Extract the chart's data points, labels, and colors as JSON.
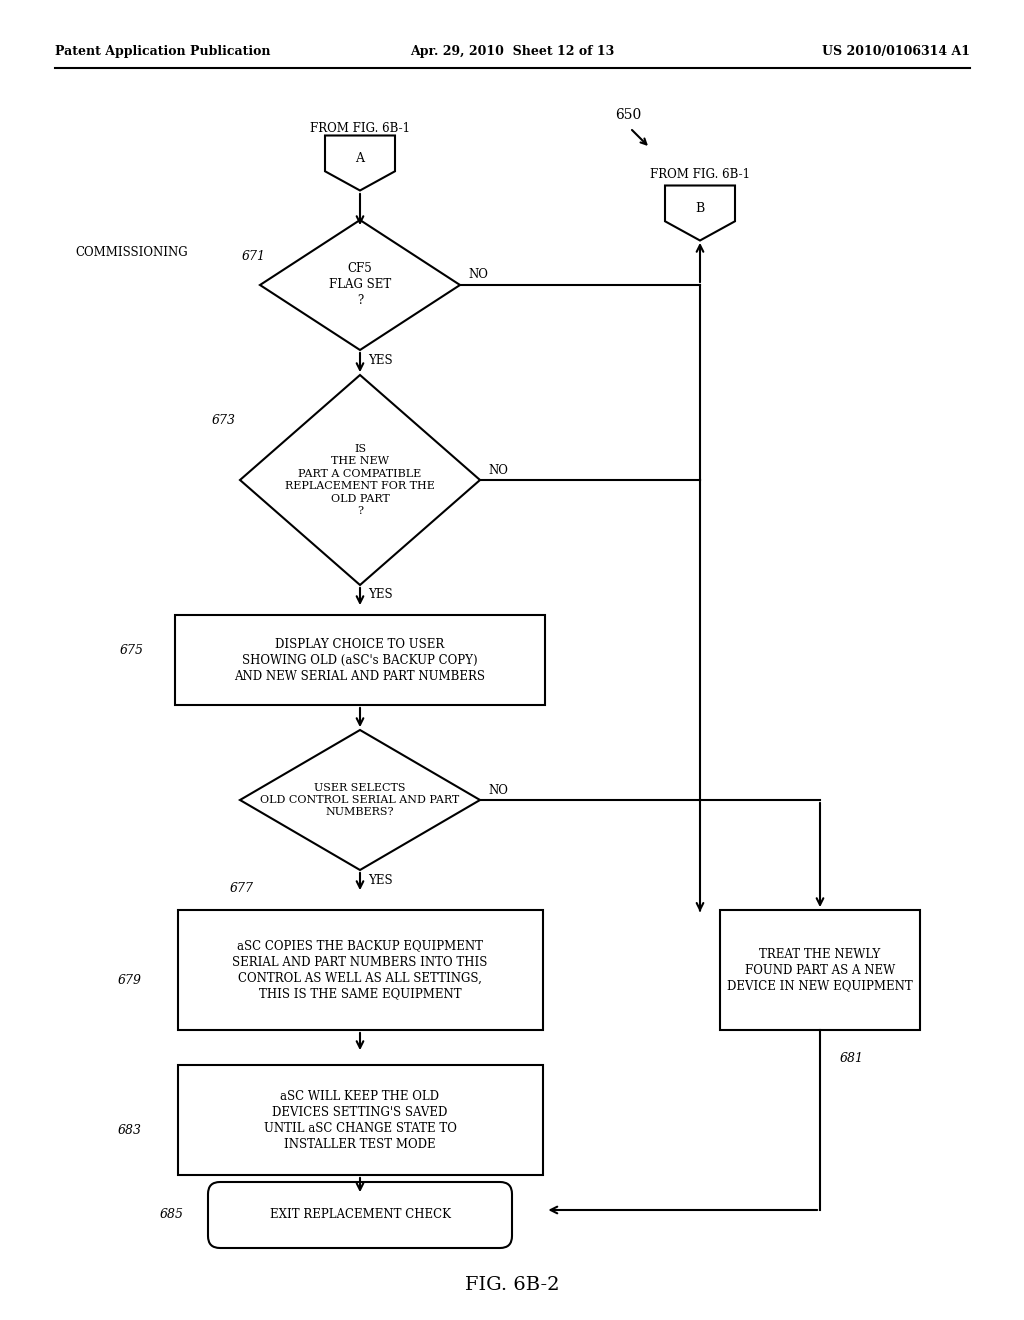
{
  "bg_color": "#ffffff",
  "header_left": "Patent Application Publication",
  "header_center": "Apr. 29, 2010  Sheet 12 of 13",
  "header_right": "US 2010/0106314 A1",
  "fig_label": "FIG. 6B-2",
  "num_650": "650",
  "commissioning_label": "COMMISSIONING",
  "node_A_label": "A",
  "node_A_from": "FROM FIG. 6B-1",
  "node_B_label": "B",
  "node_B_from": "FROM FIG. 6B-1",
  "diamond1_text": "CF5\nFLAG SET\n?",
  "diamond1_no": "NO",
  "diamond1_yes": "YES",
  "diamond1_num": "671",
  "diamond2_text": "IS\nTHE NEW\nPART A COMPATIBLE\nREPLACEMENT FOR THE\nOLD PART\n?",
  "diamond2_no": "NO",
  "diamond2_yes": "YES",
  "diamond2_num": "673",
  "box1_text": "DISPLAY CHOICE TO USER\nSHOWING OLD (aSC's BACKUP COPY)\nAND NEW SERIAL AND PART NUMBERS",
  "box1_num": "675",
  "diamond3_text": "USER SELECTS\nOLD CONTROL SERIAL AND PART\nNUMBERS?",
  "diamond3_no": "NO",
  "diamond3_yes": "YES",
  "diamond3_num": "677",
  "box2_text": "aSC COPIES THE BACKUP EQUIPMENT\nSERIAL AND PART NUMBERS INTO THIS\nCONTROL AS WELL AS ALL SETTINGS,\nTHIS IS THE SAME EQUIPMENT",
  "box2_num": "679",
  "box3_text": "TREAT THE NEWLY\nFOUND PART AS A NEW\nDEVICE IN NEW EQUIPMENT",
  "box3_num": "681",
  "box4_text": "aSC WILL KEEP THE OLD\nDEVICES SETTING'S SAVED\nUNTIL aSC CHANGE STATE TO\nINSTALLER TEST MODE",
  "box4_num": "683",
  "box5_text": "EXIT REPLACEMENT CHECK",
  "box5_num": "685",
  "lw": 1.5,
  "fontsize_body": 8.5,
  "fontsize_label": 9,
  "fontsize_header": 9
}
